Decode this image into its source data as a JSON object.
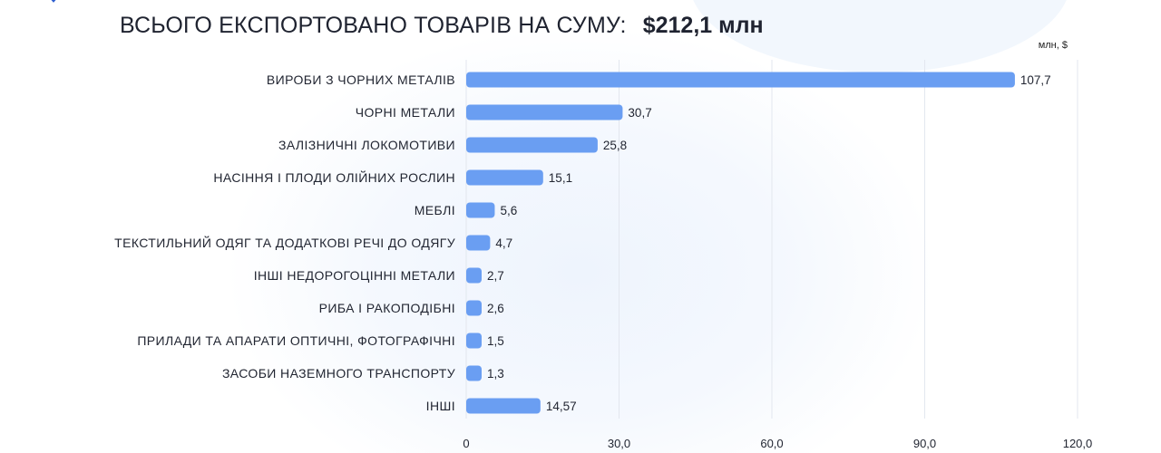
{
  "header": {
    "title": "ВСЬОГО ЕКСПОРТОВАНО ТОВАРІВ НА СУМУ:",
    "total": "$212,1 млн",
    "unit": "млн, $"
  },
  "colors": {
    "bar": "#6a9ef2",
    "grid": "#e3e7ef",
    "text": "#222632"
  },
  "chart_data": {
    "type": "bar",
    "orientation": "horizontal",
    "categories": [
      "ВИРОБИ З ЧОРНИХ МЕТАЛІВ",
      "ЧОРНІ МЕТАЛИ",
      "ЗАЛІЗНИЧНІ ЛОКОМОТИВИ",
      "НАСІННЯ І ПЛОДИ ОЛІЙНИХ РОСЛИН",
      "МЕБЛІ",
      "ТЕКСТИЛЬНИЙ ОДЯГ ТА ДОДАТКОВІ РЕЧІ ДО ОДЯГУ",
      "ІНШІ НЕДОРОГОЦІННІ МЕТАЛИ",
      "РИБА І РАКОПОДІБНІ",
      "ПРИЛАДИ ТА АПАРАТИ ОПТИЧНІ, ФОТОГРАФІЧНІ",
      "ЗАСОБИ НАЗЕМНОГО ТРАНСПОРТУ",
      "ІНШІ"
    ],
    "values": [
      107.7,
      30.7,
      25.8,
      15.1,
      5.6,
      4.7,
      2.7,
      2.6,
      1.5,
      1.3,
      14.57
    ],
    "value_labels": [
      "107,7",
      "30,7",
      "25,8",
      "15,1",
      "5,6",
      "4,7",
      "2,7",
      "2,6",
      "1,5",
      "1,3",
      "14,57"
    ],
    "xlim": [
      0,
      120
    ],
    "x_ticks": [
      0,
      30,
      60,
      90,
      120
    ],
    "x_tick_labels": [
      "0",
      "30,0",
      "60,0",
      "90,0",
      "120,0"
    ],
    "grid": true
  }
}
